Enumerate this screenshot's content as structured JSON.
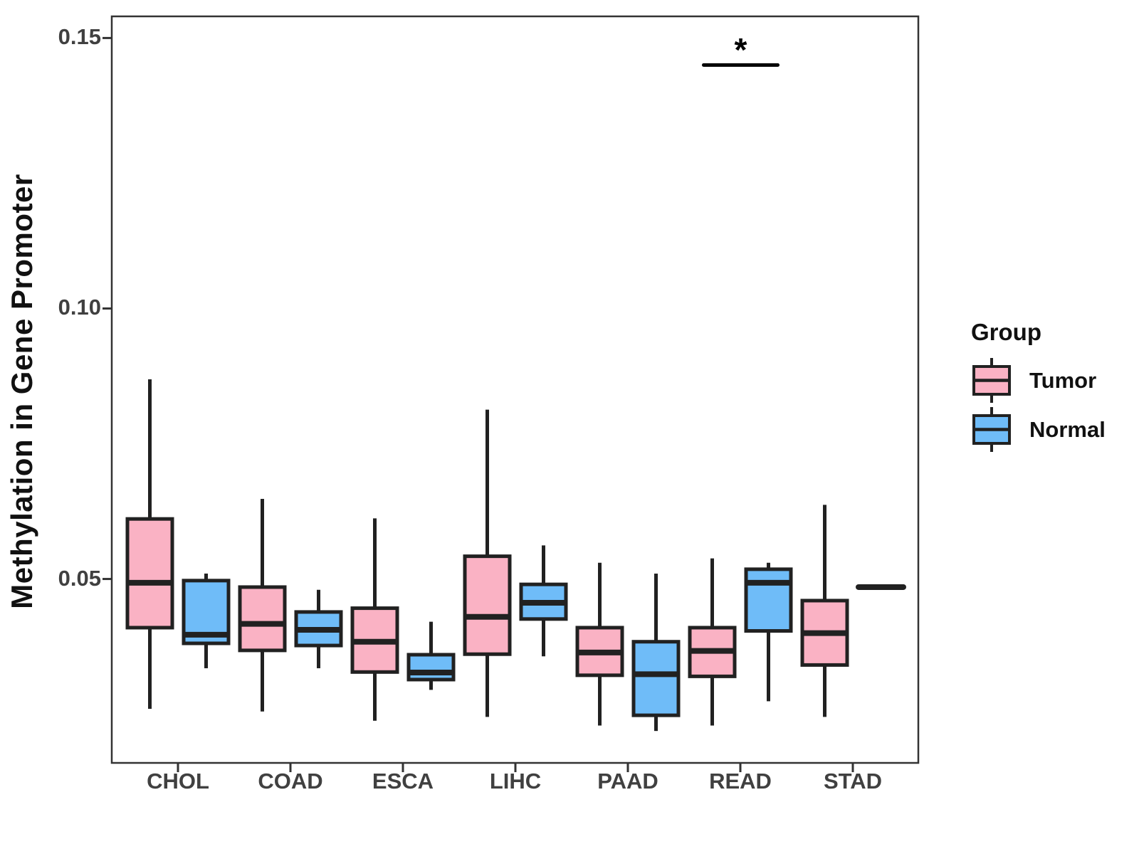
{
  "legend": {
    "title": "Group",
    "items": [
      {
        "label": "Tumor",
        "color": "#FAB2C4"
      },
      {
        "label": "Normal",
        "color": "#6FBCF8"
      }
    ]
  },
  "colors": {
    "box_border": "#212121",
    "panel_border": "#333333",
    "tick_color": "#333333",
    "annotation_color": "#000000"
  },
  "chart_data": {
    "type": "boxplot",
    "title": "",
    "xlabel": "",
    "ylabel": "Methylation in Gene Promoter",
    "categories": [
      "CHOL",
      "COAD",
      "ESCA",
      "LIHC",
      "PAAD",
      "READ",
      "STAD"
    ],
    "yticks": [
      {
        "value": 0.05,
        "label": "0.05"
      },
      {
        "value": 0.1,
        "label": "0.10"
      },
      {
        "value": 0.15,
        "label": "0.15"
      }
    ],
    "ylim": [
      0.016,
      0.154
    ],
    "grid": false,
    "legend_position": "right",
    "series": [
      {
        "name": "Tumor",
        "color": "#FAB2C4",
        "boxes": [
          {
            "low": 0.026,
            "q1": 0.041,
            "median": 0.0493,
            "q3": 0.0611,
            "high": 0.0869
          },
          {
            "low": 0.0255,
            "q1": 0.0368,
            "median": 0.0417,
            "q3": 0.0485,
            "high": 0.0648
          },
          {
            "low": 0.0238,
            "q1": 0.0328,
            "median": 0.0384,
            "q3": 0.0446,
            "high": 0.0612
          },
          {
            "low": 0.0245,
            "q1": 0.0361,
            "median": 0.043,
            "q3": 0.0542,
            "high": 0.0813
          },
          {
            "low": 0.0229,
            "q1": 0.0322,
            "median": 0.0364,
            "q3": 0.041,
            "high": 0.053
          },
          {
            "low": 0.0229,
            "q1": 0.032,
            "median": 0.0367,
            "q3": 0.041,
            "high": 0.0538
          },
          {
            "low": 0.0245,
            "q1": 0.0341,
            "median": 0.04,
            "q3": 0.046,
            "high": 0.0637
          }
        ]
      },
      {
        "name": "Normal",
        "color": "#6FBCF8",
        "boxes": [
          {
            "low": 0.0335,
            "q1": 0.0381,
            "median": 0.0397,
            "q3": 0.0497,
            "high": 0.051
          },
          {
            "low": 0.0335,
            "q1": 0.0377,
            "median": 0.0406,
            "q3": 0.0439,
            "high": 0.048
          },
          {
            "low": 0.0295,
            "q1": 0.0314,
            "median": 0.0327,
            "q3": 0.036,
            "high": 0.0421
          },
          {
            "low": 0.0357,
            "q1": 0.0426,
            "median": 0.0456,
            "q3": 0.049,
            "high": 0.0562
          },
          {
            "low": 0.0219,
            "q1": 0.0248,
            "median": 0.0324,
            "q3": 0.0384,
            "high": 0.051
          },
          {
            "low": 0.0274,
            "q1": 0.0404,
            "median": 0.0493,
            "q3": 0.0518,
            "high": 0.053
          },
          {
            "median": 0.0485,
            "single_value": true
          }
        ]
      }
    ],
    "significance": {
      "category": "READ",
      "label": "*",
      "y": 0.145
    }
  }
}
